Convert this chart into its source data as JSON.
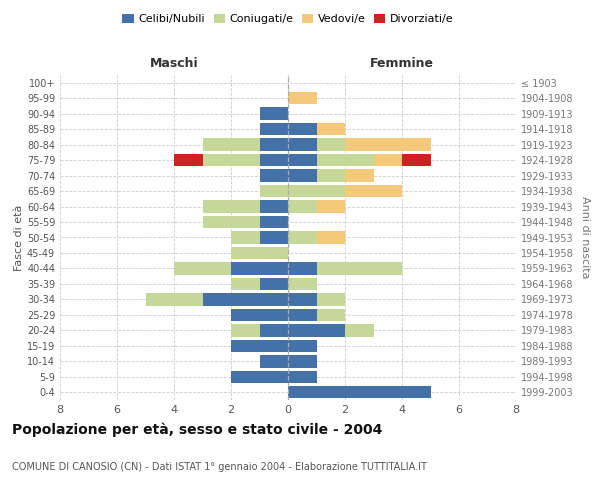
{
  "age_groups": [
    "0-4",
    "5-9",
    "10-14",
    "15-19",
    "20-24",
    "25-29",
    "30-34",
    "35-39",
    "40-44",
    "45-49",
    "50-54",
    "55-59",
    "60-64",
    "65-69",
    "70-74",
    "75-79",
    "80-84",
    "85-89",
    "90-94",
    "95-99",
    "100+"
  ],
  "birth_years": [
    "1999-2003",
    "1994-1998",
    "1989-1993",
    "1984-1988",
    "1979-1983",
    "1974-1978",
    "1969-1973",
    "1964-1968",
    "1959-1963",
    "1954-1958",
    "1949-1953",
    "1944-1948",
    "1939-1943",
    "1934-1938",
    "1929-1933",
    "1924-1928",
    "1919-1923",
    "1914-1918",
    "1909-1913",
    "1904-1908",
    "≤ 1903"
  ],
  "maschi": {
    "celibi": [
      0,
      2,
      1,
      2,
      1,
      2,
      3,
      1,
      2,
      0,
      1,
      1,
      1,
      0,
      1,
      1,
      1,
      1,
      1,
      0,
      0
    ],
    "coniugati": [
      0,
      0,
      0,
      0,
      1,
      0,
      2,
      1,
      2,
      2,
      1,
      2,
      2,
      1,
      0,
      2,
      2,
      0,
      0,
      0,
      0
    ],
    "vedovi": [
      0,
      0,
      0,
      0,
      0,
      0,
      0,
      0,
      0,
      0,
      0,
      0,
      0,
      0,
      0,
      0,
      0,
      0,
      0,
      0,
      0
    ],
    "divorziati": [
      0,
      0,
      0,
      0,
      0,
      0,
      0,
      0,
      0,
      0,
      0,
      0,
      0,
      0,
      0,
      1,
      0,
      0,
      0,
      0,
      0
    ]
  },
  "femmine": {
    "nubili": [
      5,
      1,
      1,
      1,
      2,
      1,
      1,
      0,
      1,
      0,
      0,
      0,
      0,
      0,
      1,
      1,
      1,
      1,
      0,
      0,
      0
    ],
    "coniugate": [
      0,
      0,
      0,
      0,
      1,
      1,
      1,
      1,
      3,
      0,
      1,
      0,
      1,
      2,
      1,
      2,
      1,
      0,
      0,
      0,
      0
    ],
    "vedove": [
      0,
      0,
      0,
      0,
      0,
      0,
      0,
      0,
      0,
      0,
      1,
      0,
      1,
      2,
      1,
      1,
      3,
      1,
      0,
      1,
      0
    ],
    "divorziate": [
      0,
      0,
      0,
      0,
      0,
      0,
      0,
      0,
      0,
      0,
      0,
      0,
      0,
      0,
      0,
      1,
      0,
      0,
      0,
      0,
      0
    ]
  },
  "colors": {
    "celibi": "#4472a8",
    "coniugati": "#c5d89a",
    "vedovi": "#f5c97a",
    "divorziati": "#cc2222"
  },
  "xlim": 8,
  "title": "Popolazione per età, sesso e stato civile - 2004",
  "subtitle": "COMUNE DI CANOSIO (CN) - Dati ISTAT 1° gennaio 2004 - Elaborazione TUTTITALIA.IT",
  "ylabel_left": "Fasce di età",
  "ylabel_right": "Anni di nascita",
  "xlabel_left": "Maschi",
  "xlabel_right": "Femmine",
  "legend_labels": [
    "Celibi/Nubili",
    "Coniugati/e",
    "Vedovi/e",
    "Divorziati/e"
  ],
  "background_color": "#ffffff",
  "grid_color": "#cccccc"
}
